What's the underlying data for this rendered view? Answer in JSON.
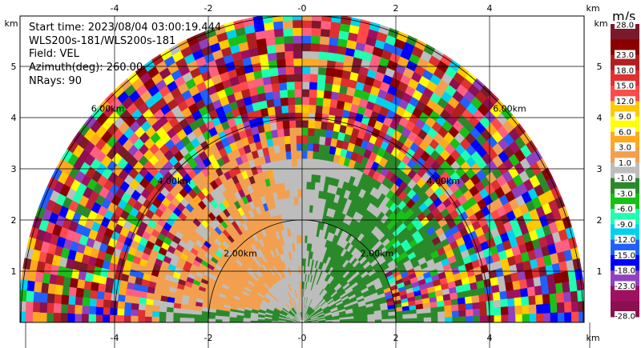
{
  "info": {
    "start_time": "Start time: 2023/08/04 03:00:19.444",
    "instrument": "WLS200s-181/WLS200s-181",
    "field": "Field: VEL",
    "azimuth": "Azimuth(deg): 260.00",
    "nrays": "NRays: 90"
  },
  "axis_unit": "km",
  "colorbar_unit": "m/s",
  "chart_data": {
    "type": "heatmap",
    "title": "",
    "xlabel": "km",
    "ylabel": "km",
    "xlim": [
      -6.0,
      6.0
    ],
    "ylim": [
      0,
      5.8
    ],
    "x_ticks": [
      "-4",
      "-2",
      "-0",
      "2",
      "4"
    ],
    "x_tick_values": [
      -4,
      -2,
      0,
      2,
      4
    ],
    "y_ticks": [
      "1",
      "2",
      "3",
      "4",
      "5"
    ],
    "y_tick_values": [
      1,
      2,
      3,
      4,
      5
    ],
    "range_rings": [
      {
        "radius": 2,
        "label": "2.00km"
      },
      {
        "radius": 4,
        "label": "4.00km"
      },
      {
        "radius": 6,
        "label": "6.00km"
      }
    ],
    "max_range": 6.0,
    "colorbar": {
      "ticks": [
        "28.0",
        "23.0",
        "18.0",
        "15.0",
        "12.0",
        "9.0",
        "6.0",
        "3.0",
        "1.0",
        "-1.0",
        "-3.0",
        "-6.0",
        "-9.0",
        "-12.0",
        "-15.0",
        "-18.0",
        "-23.0",
        "-28.0"
      ],
      "colors": [
        "#7a1a2a",
        "#8a0000",
        "#b02020",
        "#e03030",
        "#ff4a4a",
        "#ffc800",
        "#ffff00",
        "#ffa820",
        "#f2a050",
        "#bdbdbd",
        "#2a8a2a",
        "#18c018",
        "#20ffb0",
        "#00d0f0",
        "#2060ff",
        "#0000ff",
        "#9040c0",
        "#a01060",
        "#8a1050"
      ]
    }
  }
}
